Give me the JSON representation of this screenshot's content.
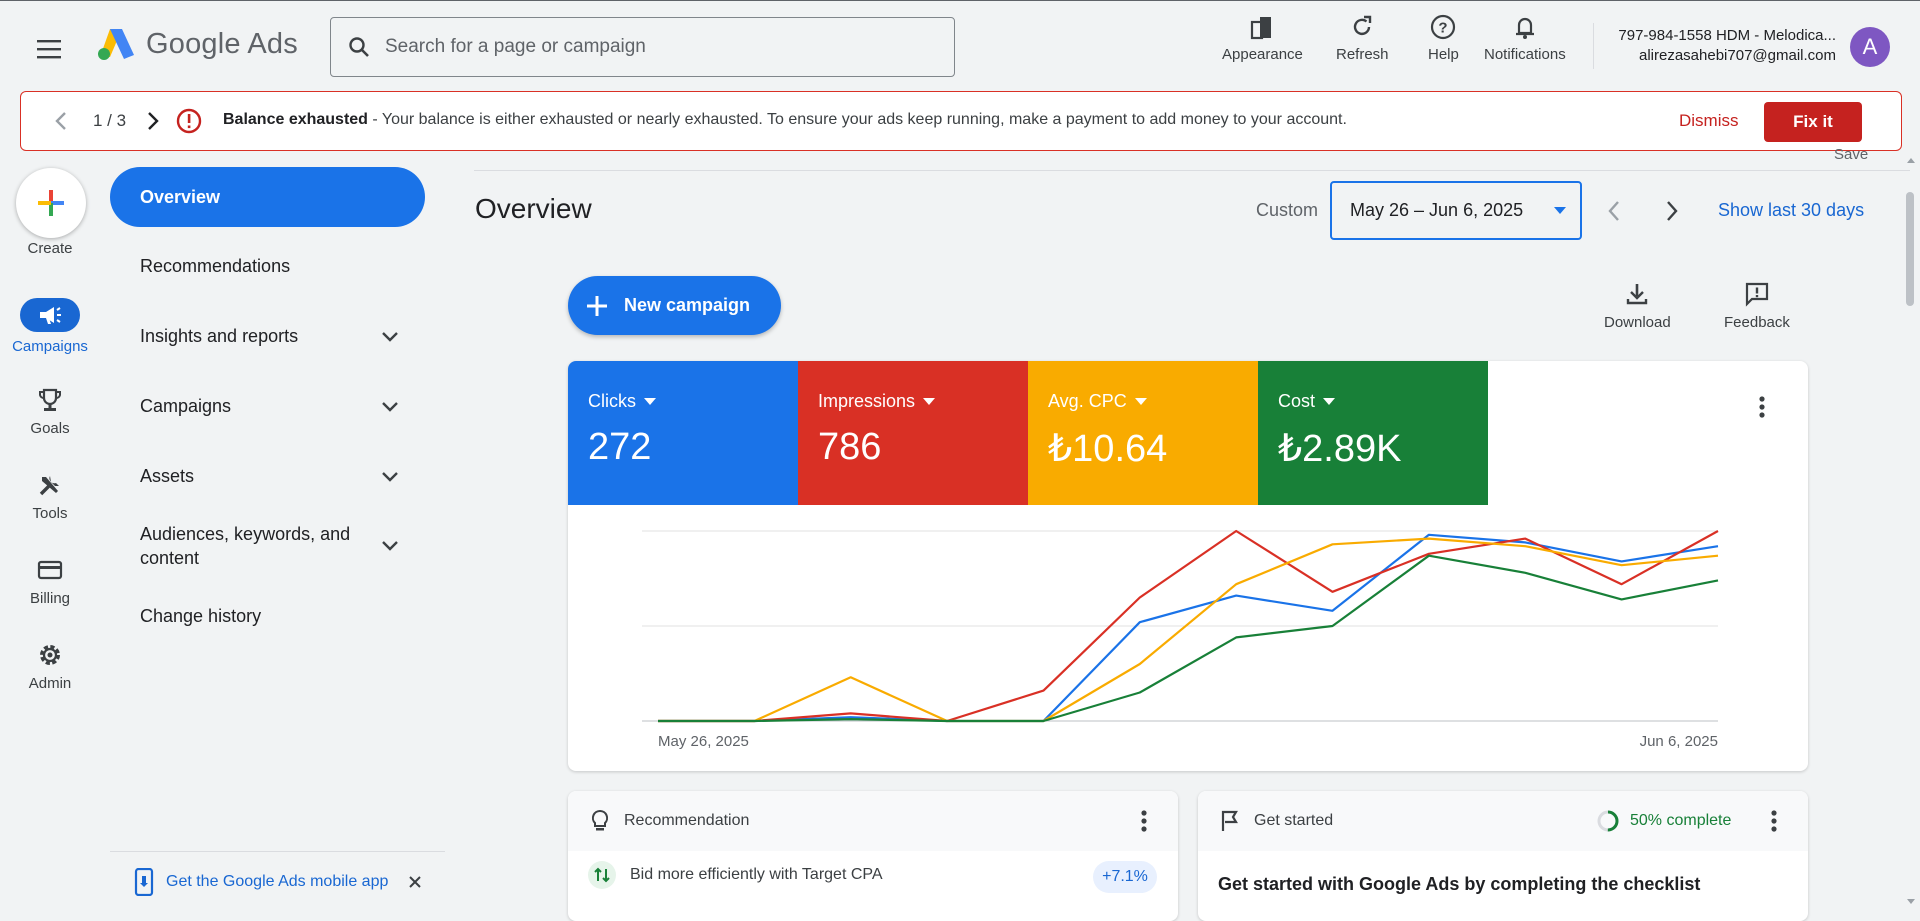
{
  "header": {
    "brand_name": "Google Ads",
    "search_placeholder": "Search for a page or campaign",
    "tools": [
      {
        "label": "Appearance",
        "icon": "appearance-icon"
      },
      {
        "label": "Refresh",
        "icon": "refresh-icon"
      },
      {
        "label": "Help",
        "icon": "help-icon"
      },
      {
        "label": "Notifications",
        "icon": "bell-icon"
      }
    ],
    "account_name": "797-984-1558 HDM - Melodica...",
    "account_email": "alirezasahebi707@gmail.com",
    "avatar_letter": "A"
  },
  "alert": {
    "counter": "1 / 3",
    "title": "Balance exhausted",
    "message": " - Your balance is either exhausted or nearly exhausted. To ensure your ads keep running, make a payment to add money to your account.",
    "dismiss_label": "Dismiss",
    "fix_label": "Fix it"
  },
  "rail": {
    "create_label": "Create",
    "items": [
      {
        "label": "Campaigns",
        "icon": "megaphone-icon",
        "active": true
      },
      {
        "label": "Goals",
        "icon": "trophy-icon"
      },
      {
        "label": "Tools",
        "icon": "tools-icon"
      },
      {
        "label": "Billing",
        "icon": "credit-card-icon"
      },
      {
        "label": "Admin",
        "icon": "gear-icon"
      }
    ]
  },
  "subnav": {
    "active": "Overview",
    "items": [
      "Recommendations",
      "Insights and reports",
      "Campaigns",
      "Assets",
      "Audiences, keywords, and content",
      "Change history"
    ],
    "mobile_app_label": "Get the Google Ads mobile app"
  },
  "main": {
    "title": "Overview",
    "save_label": "Save",
    "date_mode": "Custom",
    "date_range": "May 26 – Jun 6, 2025",
    "show_last_label": "Show last 30 days",
    "new_campaign_label": "New campaign",
    "download_label": "Download",
    "feedback_label": "Feedback"
  },
  "metrics": [
    {
      "label": "Clicks",
      "value": "272",
      "color": "#1a73e8"
    },
    {
      "label": "Impressions",
      "value": "786",
      "color": "#d93025"
    },
    {
      "label": "Avg. CPC",
      "value": "₺10.64",
      "color": "#f9ab00"
    },
    {
      "label": "Cost",
      "value": "₺2.89K",
      "color": "#188038"
    }
  ],
  "chart_data": {
    "type": "line",
    "x_start_label": "May 26, 2025",
    "x_end_label": "Jun 6, 2025",
    "ylim": [
      0,
      1
    ],
    "grid": true,
    "series": [
      {
        "color": "#1a73e8",
        "values": [
          0,
          0,
          0.02,
          0,
          0,
          0.52,
          0.66,
          0.58,
          0.98,
          0.94,
          0.84,
          0.92
        ]
      },
      {
        "color": "#d93025",
        "values": [
          0,
          0,
          0.04,
          0,
          0.16,
          0.65,
          1.0,
          0.68,
          0.88,
          0.96,
          0.72,
          1.0
        ]
      },
      {
        "color": "#f9ab00",
        "values": [
          0,
          0,
          0.23,
          0,
          0,
          0.3,
          0.72,
          0.93,
          0.96,
          0.92,
          0.82,
          0.87
        ]
      },
      {
        "color": "#188038",
        "values": [
          0,
          0,
          0.01,
          0,
          0,
          0.15,
          0.44,
          0.5,
          0.87,
          0.78,
          0.64,
          0.74
        ]
      }
    ]
  },
  "recommendation": {
    "heading": "Recommendation",
    "item_text": "Bid more efficiently with Target CPA",
    "badge": "+7.1%"
  },
  "get_started": {
    "heading": "Get started",
    "progress_label": "50% complete",
    "progress_fraction": 0.5,
    "title": "Get started with Google Ads by completing the checklist"
  }
}
